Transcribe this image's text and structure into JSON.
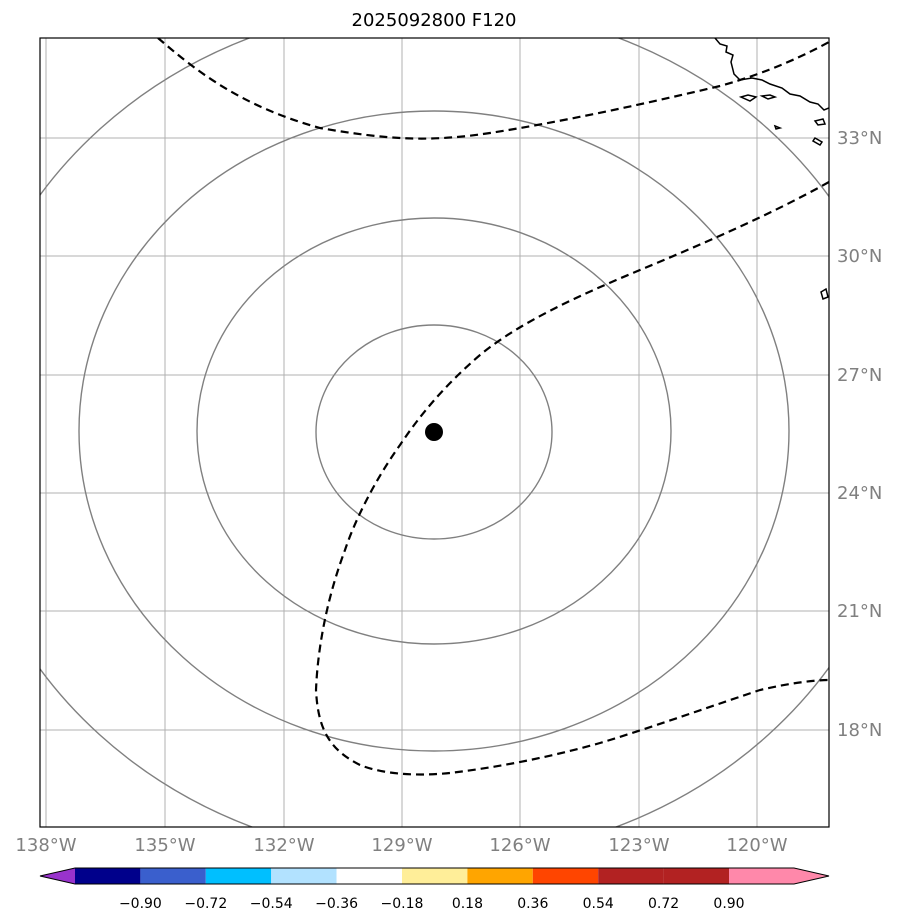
{
  "title": "2025092800 F120",
  "map": {
    "lon_ticks": [
      "138°W",
      "135°W",
      "132°W",
      "129°W",
      "126°W",
      "123°W",
      "120°W"
    ],
    "lat_ticks": [
      "33°N",
      "30°N",
      "27°N",
      "24°N",
      "21°N",
      "18°N"
    ],
    "grid": true,
    "center_marker": {
      "lon": -128.0,
      "lat": 25.5,
      "color": "#000000"
    },
    "range_ring_color": "#808080",
    "contour_style": "dashed black"
  },
  "colorbar": {
    "ticks": [
      "−0.90",
      "−0.72",
      "−0.54",
      "−0.36",
      "−0.18",
      "0.18",
      "0.36",
      "0.54",
      "0.72",
      "0.90"
    ],
    "colors": [
      "#9933cc",
      "#00008b",
      "#3a5fcd",
      "#00bfff",
      "#b2e2ff",
      "#ffffff",
      "#ffee99",
      "#ffa500",
      "#ff4500",
      "#b22222",
      "#ff88aa"
    ],
    "extend": "both"
  }
}
